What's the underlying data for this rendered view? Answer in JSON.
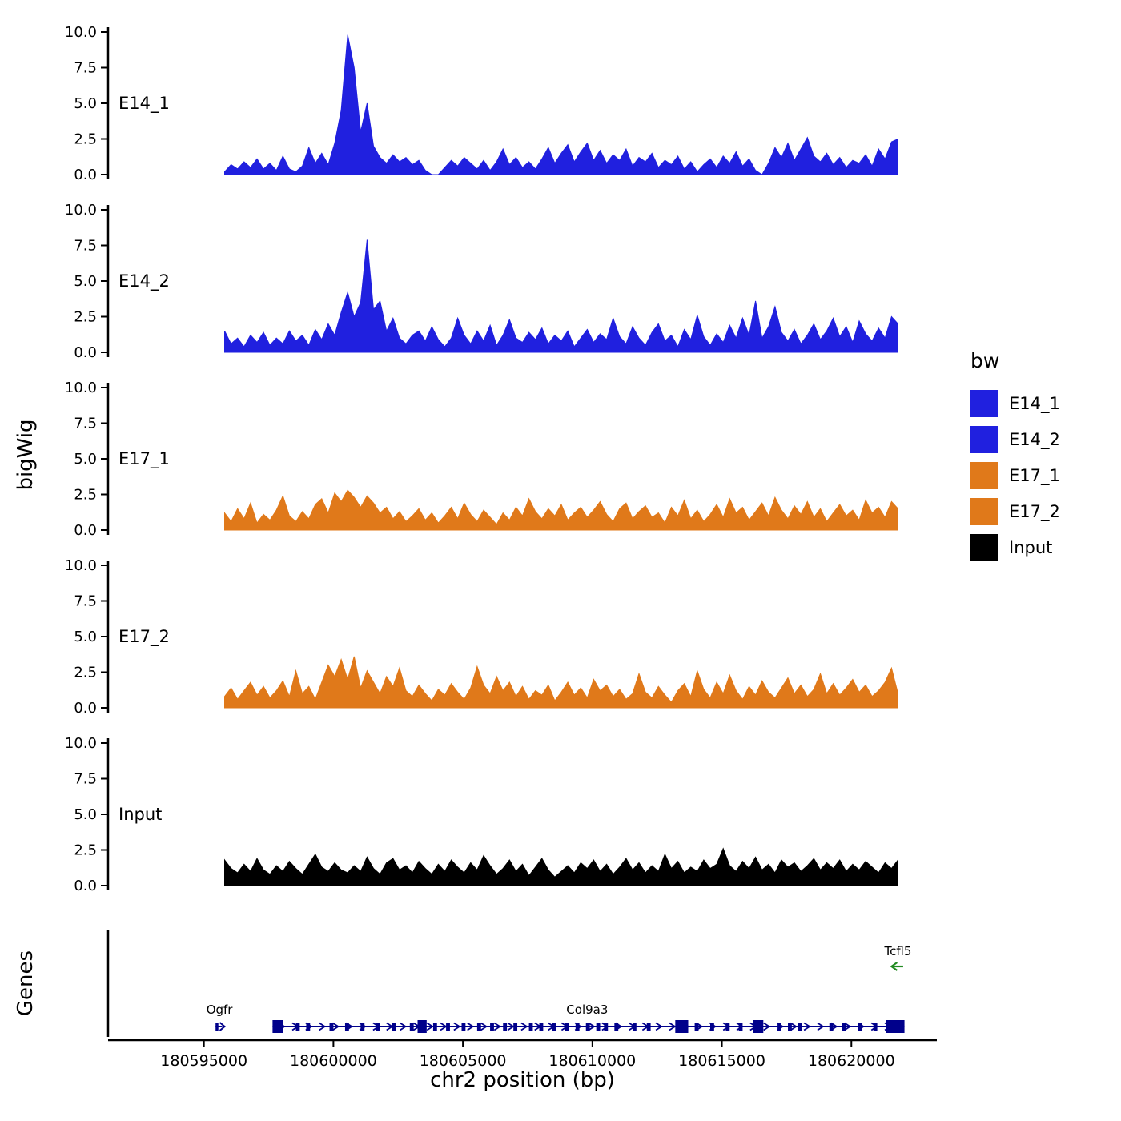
{
  "figure": {
    "bigwig_axis_title": "bigWig",
    "genes_axis_title": "Genes",
    "x_axis_title": "chr2 position (bp)"
  },
  "legend": {
    "title": "bw",
    "items": [
      {
        "label": "E14_1",
        "color": "#2020DF"
      },
      {
        "label": "E14_2",
        "color": "#2020DF"
      },
      {
        "label": "E17_1",
        "color": "#E0791A"
      },
      {
        "label": "E17_2",
        "color": "#E0791A"
      },
      {
        "label": "Input",
        "color": "#000000"
      }
    ]
  },
  "chart_data": {
    "type": "area",
    "title": "",
    "x_axis": {
      "label": "chr2 position (bp)",
      "min": 180591300,
      "max": 180623300,
      "ticks": [
        {
          "value": 180595000,
          "label": "180595000"
        },
        {
          "value": 180600000,
          "label": "180600000"
        },
        {
          "value": 180605000,
          "label": "180605000"
        },
        {
          "value": 180610000,
          "label": "180610000"
        },
        {
          "value": 180615000,
          "label": "180615000"
        },
        {
          "value": 180620000,
          "label": "180620000"
        }
      ]
    },
    "y_axis": {
      "label": "bigWig",
      "min": 0,
      "max": 10,
      "ticks": [
        {
          "value": 10,
          "label": "10.0"
        },
        {
          "value": 7.5,
          "label": "7.5"
        },
        {
          "value": 5,
          "label": "5.0"
        },
        {
          "value": 2.5,
          "label": "2.5"
        },
        {
          "value": 0,
          "label": "0.0"
        }
      ]
    },
    "series": [
      {
        "name": "E14_1",
        "color": "#2020DF",
        "x_start": 180595800,
        "x_step": 250,
        "values": [
          0.2,
          0.7,
          0.4,
          0.9,
          0.5,
          1.1,
          0.4,
          0.8,
          0.3,
          1.3,
          0.4,
          0.2,
          0.6,
          1.9,
          0.8,
          1.5,
          0.7,
          2.2,
          4.5,
          9.8,
          7.5,
          3.0,
          5.0,
          2.0,
          1.2,
          0.8,
          1.4,
          0.9,
          1.2,
          0.7,
          1.0,
          0.3,
          0.0,
          0.0,
          0.5,
          1.0,
          0.6,
          1.2,
          0.8,
          0.4,
          1.0,
          0.3,
          0.9,
          1.8,
          0.7,
          1.2,
          0.5,
          0.9,
          0.4,
          1.1,
          1.9,
          0.8,
          1.5,
          2.1,
          0.9,
          1.6,
          2.2,
          1.0,
          1.7,
          0.8,
          1.4,
          1.0,
          1.8,
          0.6,
          1.2,
          0.9,
          1.5,
          0.5,
          1.0,
          0.7,
          1.3,
          0.4,
          0.9,
          0.2,
          0.7,
          1.1,
          0.5,
          1.3,
          0.8,
          1.6,
          0.6,
          1.1,
          0.3,
          0.0,
          0.8,
          1.9,
          1.2,
          2.2,
          1.0,
          1.8,
          2.6,
          1.3,
          0.9,
          1.5,
          0.7,
          1.2,
          0.5,
          1.0,
          0.8,
          1.4,
          0.6,
          1.8,
          1.1,
          2.3,
          2.5
        ]
      },
      {
        "name": "E14_2",
        "color": "#2020DF",
        "x_start": 180595800,
        "x_step": 250,
        "values": [
          1.5,
          0.6,
          1.0,
          0.4,
          1.2,
          0.7,
          1.4,
          0.5,
          1.0,
          0.6,
          1.5,
          0.8,
          1.2,
          0.5,
          1.6,
          0.9,
          2.0,
          1.2,
          2.8,
          4.2,
          2.5,
          3.5,
          7.9,
          3.0,
          3.6,
          1.5,
          2.4,
          1.0,
          0.6,
          1.2,
          1.5,
          0.8,
          1.8,
          0.9,
          0.4,
          1.0,
          2.4,
          1.2,
          0.6,
          1.5,
          0.8,
          1.9,
          0.5,
          1.2,
          2.3,
          1.0,
          0.7,
          1.4,
          0.9,
          1.7,
          0.6,
          1.2,
          0.8,
          1.5,
          0.4,
          1.0,
          1.6,
          0.7,
          1.3,
          0.9,
          2.4,
          1.1,
          0.6,
          1.8,
          1.0,
          0.5,
          1.4,
          2.0,
          0.8,
          1.2,
          0.4,
          1.6,
          0.9,
          2.6,
          1.1,
          0.5,
          1.3,
          0.7,
          1.9,
          1.0,
          2.4,
          1.2,
          3.6,
          1.0,
          1.8,
          3.2,
          1.4,
          0.8,
          1.6,
          0.6,
          1.2,
          2.0,
          0.9,
          1.5,
          2.4,
          1.1,
          1.8,
          0.7,
          2.2,
          1.3,
          0.8,
          1.7,
          1.0,
          2.5,
          2.0
        ]
      },
      {
        "name": "E17_1",
        "color": "#E0791A",
        "x_start": 180595800,
        "x_step": 250,
        "values": [
          1.2,
          0.6,
          1.5,
          0.8,
          1.9,
          0.5,
          1.1,
          0.7,
          1.4,
          2.4,
          1.0,
          0.6,
          1.3,
          0.8,
          1.8,
          2.2,
          1.2,
          2.6,
          2.0,
          2.8,
          2.3,
          1.6,
          2.4,
          1.9,
          1.2,
          1.6,
          0.8,
          1.3,
          0.6,
          1.0,
          1.5,
          0.7,
          1.2,
          0.5,
          1.0,
          1.6,
          0.8,
          1.9,
          1.1,
          0.6,
          1.4,
          0.9,
          0.4,
          1.2,
          0.7,
          1.6,
          1.0,
          2.2,
          1.3,
          0.8,
          1.5,
          1.0,
          1.8,
          0.7,
          1.2,
          1.6,
          0.9,
          1.4,
          2.0,
          1.1,
          0.6,
          1.5,
          1.9,
          0.8,
          1.3,
          1.7,
          0.9,
          1.2,
          0.5,
          1.6,
          1.0,
          2.1,
          0.8,
          1.4,
          0.6,
          1.1,
          1.8,
          0.9,
          2.2,
          1.2,
          1.6,
          0.7,
          1.3,
          1.9,
          1.0,
          2.3,
          1.4,
          0.8,
          1.7,
          1.1,
          2.0,
          0.9,
          1.5,
          0.6,
          1.2,
          1.8,
          1.0,
          1.4,
          0.7,
          2.1,
          1.2,
          1.6,
          0.9,
          2.0,
          1.5
        ]
      },
      {
        "name": "E17_2",
        "color": "#E0791A",
        "x_start": 180595800,
        "x_step": 250,
        "values": [
          0.8,
          1.4,
          0.6,
          1.2,
          1.8,
          0.9,
          1.5,
          0.7,
          1.2,
          1.9,
          0.8,
          2.6,
          1.0,
          1.5,
          0.6,
          1.8,
          3.0,
          2.2,
          3.4,
          2.0,
          3.6,
          1.4,
          2.6,
          1.8,
          1.0,
          2.2,
          1.5,
          2.8,
          1.2,
          0.8,
          1.6,
          1.0,
          0.5,
          1.3,
          0.9,
          1.7,
          1.1,
          0.6,
          1.4,
          2.9,
          1.6,
          1.0,
          2.2,
          1.2,
          1.8,
          0.8,
          1.5,
          0.6,
          1.2,
          0.9,
          1.6,
          0.5,
          1.1,
          1.8,
          0.9,
          1.4,
          0.7,
          2.0,
          1.2,
          1.6,
          0.8,
          1.3,
          0.6,
          1.0,
          2.4,
          1.1,
          0.7,
          1.5,
          0.9,
          0.4,
          1.2,
          1.7,
          0.8,
          2.6,
          1.3,
          0.7,
          1.8,
          1.0,
          2.3,
          1.2,
          0.6,
          1.5,
          0.9,
          1.9,
          1.1,
          0.7,
          1.4,
          2.1,
          1.0,
          1.6,
          0.8,
          1.3,
          2.4,
          1.0,
          1.7,
          0.9,
          1.4,
          2.0,
          1.1,
          1.6,
          0.8,
          1.2,
          1.8,
          2.8,
          1.0
        ]
      },
      {
        "name": "Input",
        "color": "#000000",
        "x_start": 180595800,
        "x_step": 250,
        "values": [
          1.8,
          1.2,
          0.9,
          1.5,
          1.0,
          1.9,
          1.1,
          0.8,
          1.4,
          1.0,
          1.7,
          1.2,
          0.8,
          1.5,
          2.2,
          1.3,
          1.0,
          1.6,
          1.1,
          0.9,
          1.4,
          1.0,
          2.0,
          1.2,
          0.8,
          1.6,
          1.9,
          1.1,
          1.4,
          0.9,
          1.7,
          1.2,
          0.8,
          1.5,
          1.0,
          1.8,
          1.3,
          0.9,
          1.6,
          1.1,
          2.1,
          1.4,
          0.8,
          1.2,
          1.8,
          1.0,
          1.5,
          0.7,
          1.3,
          1.9,
          1.1,
          0.6,
          1.0,
          1.4,
          0.9,
          1.6,
          1.2,
          1.8,
          1.0,
          1.5,
          0.8,
          1.3,
          1.9,
          1.1,
          1.6,
          0.9,
          1.4,
          1.0,
          2.2,
          1.2,
          1.7,
          0.9,
          1.3,
          1.0,
          1.8,
          1.2,
          1.5,
          2.6,
          1.4,
          1.0,
          1.7,
          1.2,
          2.0,
          1.1,
          1.5,
          0.9,
          1.8,
          1.3,
          1.6,
          1.0,
          1.4,
          1.9,
          1.1,
          1.6,
          1.2,
          1.8,
          1.0,
          1.5,
          1.1,
          1.7,
          1.3,
          0.9,
          1.6,
          1.2,
          1.8
        ]
      }
    ],
    "genes": {
      "panel_label": "Genes",
      "items": [
        {
          "name": "Ogfr",
          "strand": "+",
          "color": "#00008B",
          "label_bp": 180595600,
          "glyph_start": 180595450,
          "glyph_end": 180595800,
          "row": "bottom"
        },
        {
          "name": "Col9a3",
          "strand": "+",
          "color": "#00008B",
          "start": 180597650,
          "end": 180622050,
          "label_bp": 180609800,
          "row": "bottom",
          "exons_tall": [
            [
              180597650,
              180598050
            ],
            [
              180603250,
              180603600
            ],
            [
              180613200,
              180613700
            ],
            [
              180616200,
              180616600
            ],
            [
              180621350,
              180622050
            ]
          ],
          "exons_short": [
            [
              180598550,
              180598700
            ],
            [
              180598950,
              180599100
            ],
            [
              180599850,
              180600000
            ],
            [
              180600450,
              180600600
            ],
            [
              180601050,
              180601200
            ],
            [
              180601650,
              180601800
            ],
            [
              180602250,
              180602400
            ],
            [
              180602950,
              180603100
            ],
            [
              180603850,
              180604000
            ],
            [
              180604350,
              180604500
            ],
            [
              180604950,
              180605100
            ],
            [
              180605550,
              180605700
            ],
            [
              180606050,
              180606200
            ],
            [
              180606550,
              180606700
            ],
            [
              180606950,
              180607100
            ],
            [
              180607550,
              180607700
            ],
            [
              180607950,
              180608100
            ],
            [
              180608450,
              180608600
            ],
            [
              180608950,
              180609100
            ],
            [
              180609350,
              180609500
            ],
            [
              180609750,
              180609900
            ],
            [
              180610150,
              180610300
            ],
            [
              180610450,
              180610600
            ],
            [
              180610850,
              180611000
            ],
            [
              180611550,
              180611700
            ],
            [
              180612100,
              180612250
            ],
            [
              180613950,
              180614100
            ],
            [
              180614550,
              180614700
            ],
            [
              180615150,
              180615300
            ],
            [
              180615650,
              180615800
            ],
            [
              180617150,
              180617300
            ],
            [
              180617550,
              180617700
            ],
            [
              180617950,
              180618100
            ],
            [
              180619150,
              180619300
            ],
            [
              180619650,
              180619800
            ],
            [
              180620250,
              180620400
            ],
            [
              180620850,
              180621000
            ]
          ]
        },
        {
          "name": "Tcfl5",
          "strand": "-",
          "color": "#228B22",
          "arrow_start": 180621550,
          "arrow_end": 180622000,
          "label_bp": 180621800,
          "row": "top"
        }
      ]
    }
  }
}
